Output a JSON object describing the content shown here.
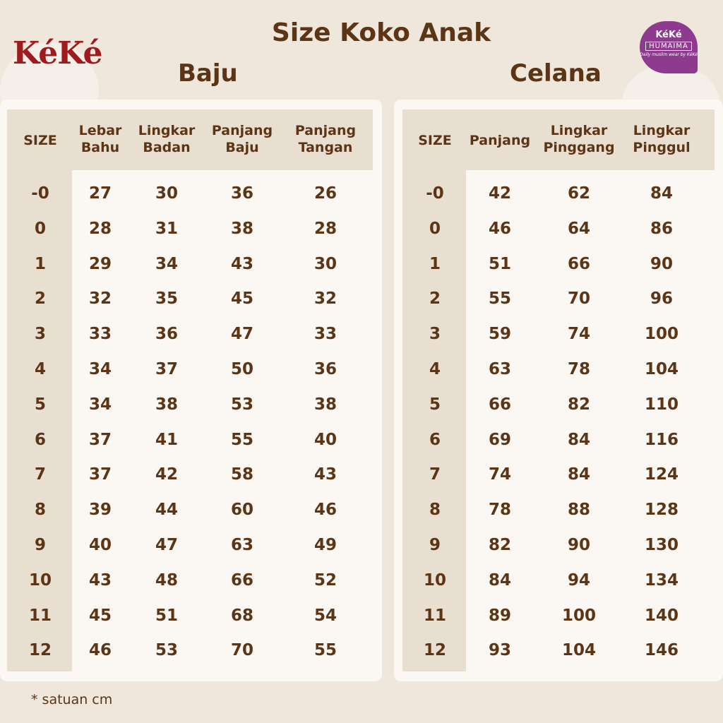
{
  "title": "Size Koko Anak",
  "logo_left": "KéKé",
  "logo_right": {
    "brand": "KéKé",
    "name": "HUMAIMA",
    "tagline": "Daily muslim wear by KéKé"
  },
  "baju": {
    "title": "Baju",
    "headers": [
      [
        "SIZE"
      ],
      [
        "Lebar",
        "Bahu"
      ],
      [
        "Lingkar",
        "Badan"
      ],
      [
        "Panjang",
        "Baju"
      ],
      [
        "Panjang",
        "Tangan"
      ]
    ],
    "rows": [
      [
        "-0",
        "27",
        "30",
        "36",
        "26"
      ],
      [
        "0",
        "28",
        "31",
        "38",
        "28"
      ],
      [
        "1",
        "29",
        "34",
        "43",
        "30"
      ],
      [
        "2",
        "32",
        "35",
        "45",
        "32"
      ],
      [
        "3",
        "33",
        "36",
        "47",
        "33"
      ],
      [
        "4",
        "34",
        "37",
        "50",
        "36"
      ],
      [
        "5",
        "34",
        "38",
        "53",
        "38"
      ],
      [
        "6",
        "37",
        "41",
        "55",
        "40"
      ],
      [
        "7",
        "37",
        "42",
        "58",
        "43"
      ],
      [
        "8",
        "39",
        "44",
        "60",
        "46"
      ],
      [
        "9",
        "40",
        "47",
        "63",
        "49"
      ],
      [
        "10",
        "43",
        "48",
        "66",
        "52"
      ],
      [
        "11",
        "45",
        "51",
        "68",
        "54"
      ],
      [
        "12",
        "46",
        "53",
        "70",
        "55"
      ]
    ]
  },
  "celana": {
    "title": "Celana",
    "headers": [
      [
        "SIZE"
      ],
      [
        "Panjang"
      ],
      [
        "Lingkar",
        "Pinggang"
      ],
      [
        "Lingkar",
        "Pinggul"
      ]
    ],
    "rows": [
      [
        "-0",
        "42",
        "62",
        "84"
      ],
      [
        "0",
        "46",
        "64",
        "86"
      ],
      [
        "1",
        "51",
        "66",
        "90"
      ],
      [
        "2",
        "55",
        "70",
        "96"
      ],
      [
        "3",
        "59",
        "74",
        "100"
      ],
      [
        "4",
        "63",
        "78",
        "104"
      ],
      [
        "5",
        "66",
        "82",
        "110"
      ],
      [
        "6",
        "69",
        "84",
        "116"
      ],
      [
        "7",
        "74",
        "84",
        "124"
      ],
      [
        "8",
        "78",
        "88",
        "128"
      ],
      [
        "9",
        "82",
        "90",
        "130"
      ],
      [
        "10",
        "84",
        "94",
        "134"
      ],
      [
        "11",
        "89",
        "100",
        "140"
      ],
      [
        "12",
        "93",
        "104",
        "146"
      ]
    ]
  },
  "note": "* satuan cm",
  "colors": {
    "text": "#5b3516",
    "header_bg": "#e9dfd1",
    "panel": "#fbf8f3",
    "background": "#efe7dc",
    "logo_red": "#9e1b1e",
    "logo_purple": "#8e3a8e"
  }
}
